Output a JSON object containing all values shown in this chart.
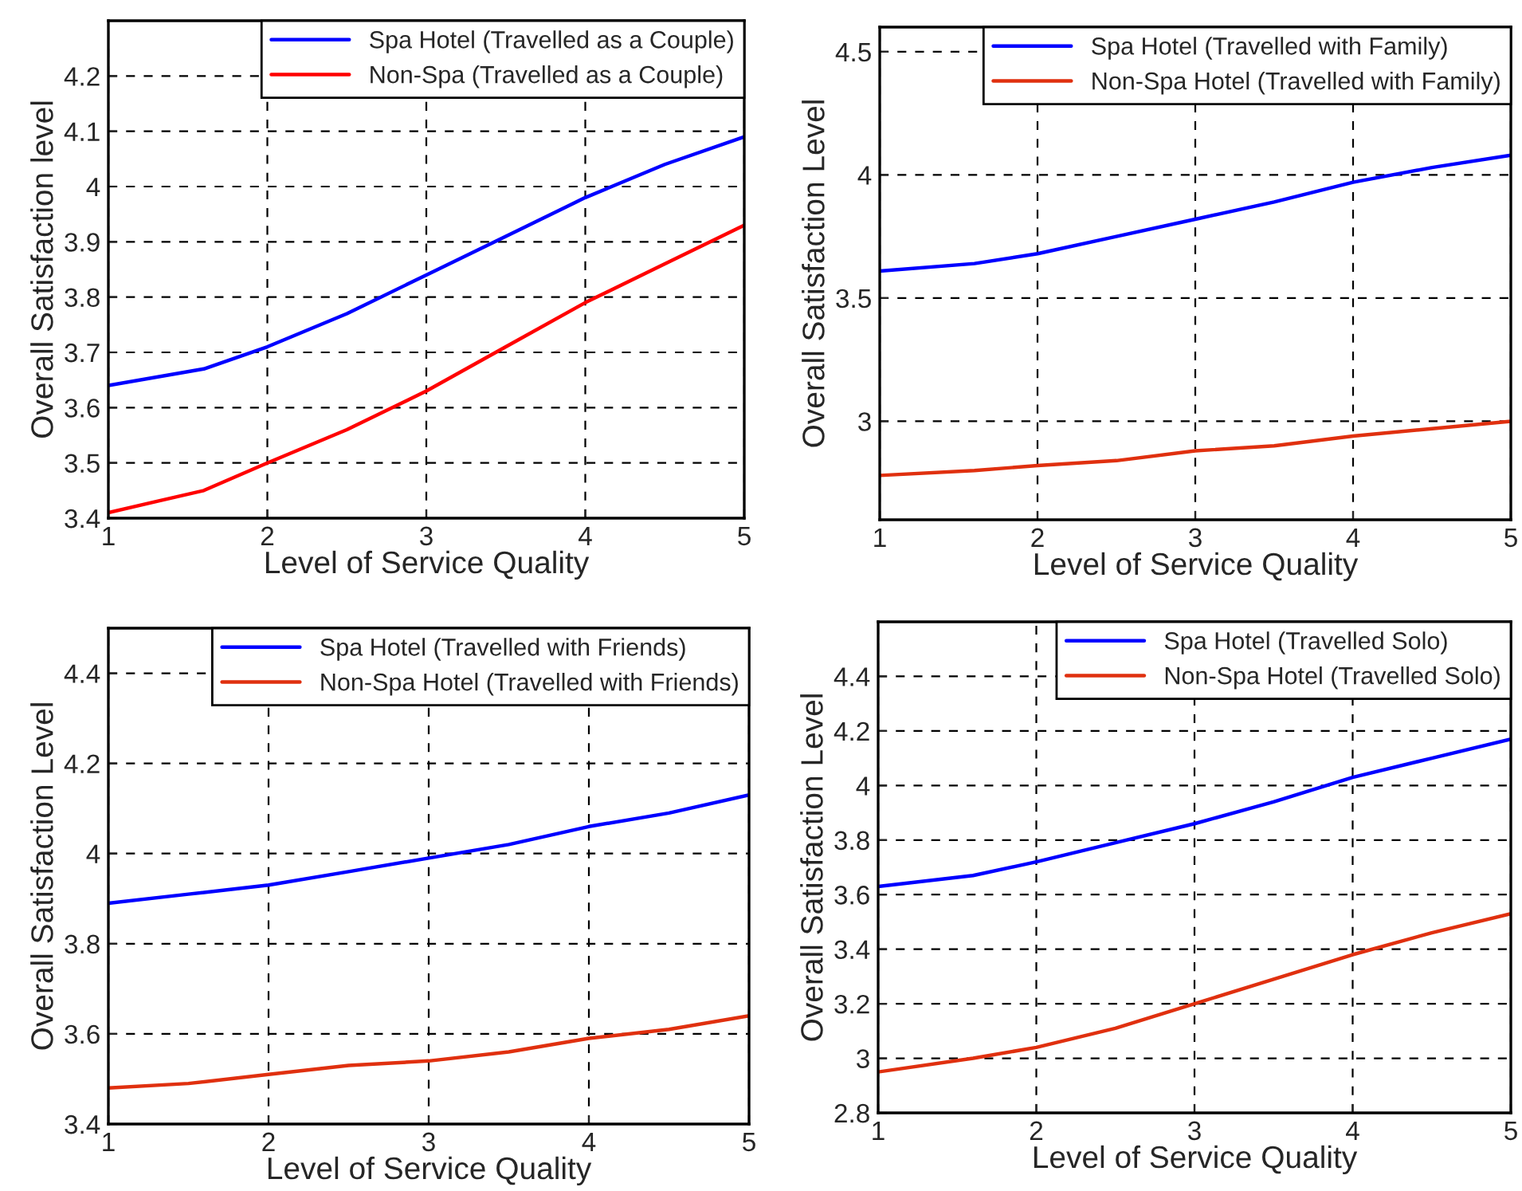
{
  "chart_data": [
    {
      "type": "line",
      "xlabel": "Level of Service Quality",
      "ylabel": "Overall Satisfaction level",
      "xlim": [
        1,
        5
      ],
      "ylim": [
        3.4,
        4.3
      ],
      "xticks": [
        1,
        2,
        3,
        4,
        5
      ],
      "yticks": [
        3.4,
        3.5,
        3.6,
        3.7,
        3.8,
        3.9,
        4,
        4.1,
        4.2
      ],
      "grid": true,
      "legend": "top right",
      "line_style": "solid",
      "series": [
        {
          "name": "Spa Hotel (Travelled as a Couple)",
          "color": "#0000ff",
          "x": [
            1,
            1.6,
            2,
            2.5,
            3,
            3.5,
            4,
            4.5,
            5
          ],
          "values": [
            3.64,
            3.67,
            3.71,
            3.77,
            3.84,
            3.91,
            3.98,
            4.04,
            4.09
          ]
        },
        {
          "name": "Non-Spa (Travelled as a Couple)",
          "color": "#ff0000",
          "x": [
            1,
            1.3,
            1.6,
            2,
            2.5,
            3,
            3.5,
            4,
            4.5,
            5
          ],
          "values": [
            3.41,
            3.43,
            3.45,
            3.5,
            3.56,
            3.63,
            3.71,
            3.79,
            3.86,
            3.93
          ]
        }
      ]
    },
    {
      "type": "line",
      "xlabel": "Level of Service Quality",
      "ylabel": "Overall Satisfaction Level",
      "xlim": [
        1,
        5
      ],
      "ylim": [
        2.6,
        4.6
      ],
      "xticks": [
        1,
        2,
        3,
        4,
        5
      ],
      "yticks": [
        3,
        3.5,
        4,
        4.5
      ],
      "grid": true,
      "legend": "top right",
      "line_style": "solid",
      "series": [
        {
          "name": "Spa Hotel (Travelled with Family)",
          "color": "#0000ff",
          "x": [
            1,
            1.6,
            2,
            2.5,
            3,
            3.5,
            4,
            4.5,
            5
          ],
          "values": [
            3.61,
            3.64,
            3.68,
            3.75,
            3.82,
            3.89,
            3.97,
            4.03,
            4.08
          ]
        },
        {
          "name": "Non-Spa Hotel (Travelled with Family)",
          "color": "#e0300f",
          "x": [
            1,
            1.6,
            2,
            2.5,
            3,
            3.5,
            4,
            4.5,
            5
          ],
          "values": [
            2.78,
            2.8,
            2.82,
            2.84,
            2.88,
            2.9,
            2.94,
            2.97,
            3.0
          ]
        }
      ]
    },
    {
      "type": "line",
      "xlabel": "Level of Service Quality",
      "ylabel": "Overall Satisfaction Level",
      "xlim": [
        1,
        5
      ],
      "ylim": [
        3.4,
        4.5
      ],
      "xticks": [
        1,
        2,
        3,
        4,
        5
      ],
      "yticks": [
        3.4,
        3.6,
        3.8,
        4,
        4.2,
        4.4
      ],
      "grid": true,
      "legend": "top right",
      "line_style": "solid",
      "series": [
        {
          "name": "Spa Hotel (Travelled with Friends)",
          "color": "#0000ff",
          "x": [
            1,
            1.5,
            2,
            2.5,
            3,
            3.5,
            4,
            4.5,
            5
          ],
          "values": [
            3.89,
            3.91,
            3.93,
            3.96,
            3.99,
            4.02,
            4.06,
            4.09,
            4.13
          ]
        },
        {
          "name": "Non-Spa Hotel (Travelled with Friends)",
          "color": "#e0300f",
          "x": [
            1,
            1.5,
            2,
            2.5,
            3,
            3.5,
            4,
            4.5,
            5
          ],
          "values": [
            3.48,
            3.49,
            3.51,
            3.53,
            3.54,
            3.56,
            3.59,
            3.61,
            3.64
          ]
        }
      ]
    },
    {
      "type": "line",
      "xlabel": "Level of Service Quality",
      "ylabel": "Overall Satisfaction Level",
      "xlim": [
        1,
        5
      ],
      "ylim": [
        2.8,
        4.6
      ],
      "xticks": [
        1,
        2,
        3,
        4,
        5
      ],
      "yticks": [
        2.8,
        3,
        3.2,
        3.4,
        3.6,
        3.8,
        4,
        4.2,
        4.4
      ],
      "grid": true,
      "legend": "top right",
      "line_style": "solid",
      "series": [
        {
          "name": "Spa Hotel (Travelled Solo)",
          "color": "#0000ff",
          "x": [
            1,
            1.6,
            2,
            2.5,
            3,
            3.5,
            4,
            4.5,
            5
          ],
          "values": [
            3.63,
            3.67,
            3.72,
            3.79,
            3.86,
            3.94,
            4.03,
            4.1,
            4.17
          ]
        },
        {
          "name": "Non-Spa Hotel (Travelled Solo)",
          "color": "#e0300f",
          "x": [
            1,
            1.6,
            2,
            2.5,
            3,
            3.5,
            4,
            4.5,
            5
          ],
          "values": [
            2.95,
            3.0,
            3.04,
            3.11,
            3.2,
            3.29,
            3.38,
            3.46,
            3.53
          ]
        }
      ]
    }
  ]
}
